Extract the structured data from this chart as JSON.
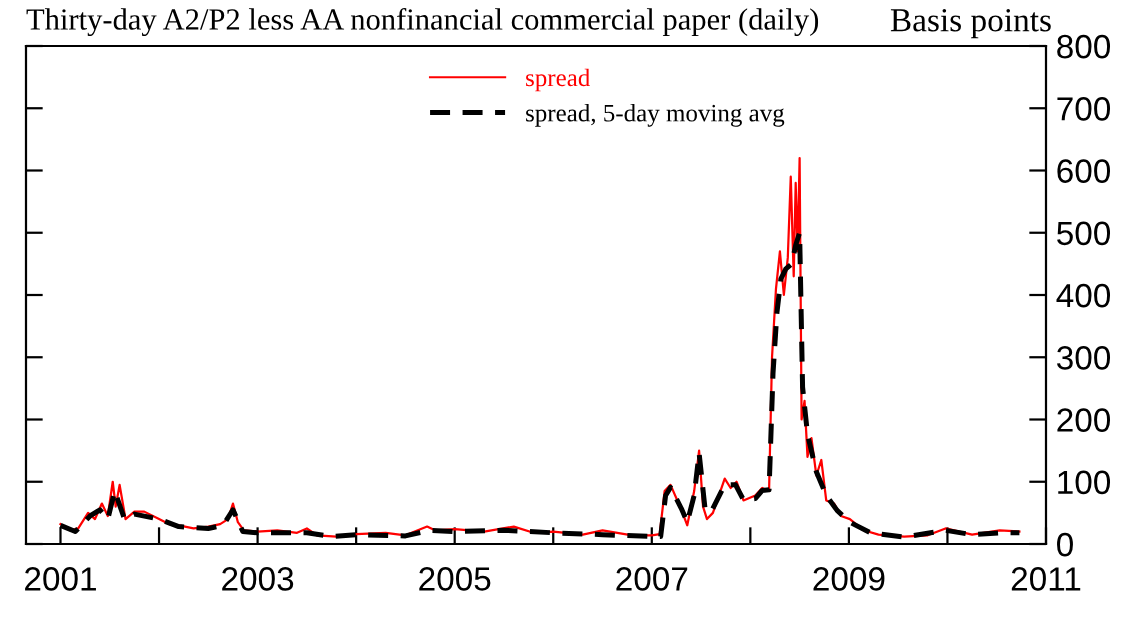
{
  "chart_data": {
    "type": "line",
    "title": "Thirty-day A2/P2 less AA nonfinancial commercial paper (daily)",
    "ylabel": "Basis points",
    "xlim": [
      2000.65,
      2011
    ],
    "xticks": [
      2001,
      {
        "value": 2002,
        "label": null
      },
      2003,
      {
        "value": 2004,
        "label": null
      },
      2005,
      {
        "value": 2006,
        "label": null
      },
      2007,
      {
        "value": 2008,
        "label": null
      },
      2009,
      {
        "value": 2010,
        "label": null
      },
      2011
    ],
    "ylim": [
      0,
      800
    ],
    "yticks": [
      0,
      100,
      200,
      300,
      400,
      500,
      600,
      700,
      800
    ],
    "grid": false,
    "legend": "top",
    "marker": "none",
    "series": [
      {
        "name": "spread",
        "color": "#ff0000",
        "line_style": "solid",
        "x": [
          2001.0,
          2001.1,
          2001.18,
          2001.28,
          2001.35,
          2001.42,
          2001.48,
          2001.53,
          2001.56,
          2001.6,
          2001.66,
          2001.75,
          2001.85,
          2002.0,
          2002.1,
          2002.2,
          2002.35,
          2002.5,
          2002.62,
          2002.7,
          2002.75,
          2002.8,
          2002.86,
          2003.0,
          2003.2,
          2003.4,
          2003.5,
          2003.6,
          2003.8,
          2004.0,
          2004.3,
          2004.5,
          2004.72,
          2004.8,
          2005.0,
          2005.3,
          2005.6,
          2005.8,
          2006.0,
          2006.3,
          2006.5,
          2006.8,
          2007.0,
          2007.08,
          2007.13,
          2007.19,
          2007.3,
          2007.36,
          2007.43,
          2007.48,
          2007.52,
          2007.56,
          2007.62,
          2007.74,
          2007.8,
          2007.86,
          2007.93,
          2008.05,
          2008.12,
          2008.19,
          2008.22,
          2008.26,
          2008.3,
          2008.34,
          2008.38,
          2008.41,
          2008.44,
          2008.46,
          2008.48,
          2008.5,
          2008.52,
          2008.55,
          2008.58,
          2008.62,
          2008.67,
          2008.72,
          2008.77,
          2008.85,
          2008.92,
          2009.01,
          2009.15,
          2009.3,
          2009.56,
          2009.8,
          2009.98,
          2010.25,
          2010.53,
          2010.73
        ],
        "values": [
          32,
          22,
          25,
          50,
          40,
          65,
          45,
          100,
          60,
          95,
          40,
          52,
          52,
          40,
          32,
          30,
          25,
          28,
          32,
          40,
          65,
          35,
          22,
          20,
          22,
          18,
          25,
          14,
          12,
          16,
          18,
          14,
          28,
          22,
          24,
          20,
          28,
          18,
          20,
          15,
          22,
          14,
          14,
          16,
          85,
          95,
          55,
          30,
          85,
          150,
          60,
          40,
          50,
          105,
          90,
          100,
          70,
          78,
          90,
          85,
          300,
          410,
          470,
          400,
          460,
          590,
          430,
          580,
          470,
          620,
          200,
          230,
          140,
          170,
          110,
          135,
          70,
          65,
          45,
          40,
          22,
          15,
          12,
          14,
          25,
          15,
          22,
          20
        ]
      },
      {
        "name": "spread, 5-day moving avg",
        "color": "#000000",
        "line_style": "dashed",
        "x": [
          2001.0,
          2001.15,
          2001.3,
          2001.4,
          2001.48,
          2001.55,
          2001.65,
          2001.75,
          2002.0,
          2002.2,
          2002.5,
          2002.65,
          2002.75,
          2002.85,
          2003.0,
          2003.5,
          2003.75,
          2004.0,
          2004.5,
          2004.75,
          2005.0,
          2005.5,
          2006.0,
          2006.5,
          2007.0,
          2007.09,
          2007.14,
          2007.19,
          2007.3,
          2007.36,
          2007.43,
          2007.48,
          2007.54,
          2007.6,
          2007.74,
          2007.85,
          2007.93,
          2008.05,
          2008.12,
          2008.19,
          2008.23,
          2008.27,
          2008.31,
          2008.36,
          2008.42,
          2008.46,
          2008.5,
          2008.53,
          2008.58,
          2008.67,
          2008.77,
          2008.88,
          2009.01,
          2009.22,
          2009.56,
          2009.98,
          2010.25,
          2010.53,
          2010.73
        ],
        "values": [
          30,
          20,
          45,
          55,
          40,
          85,
          40,
          48,
          40,
          28,
          25,
          30,
          55,
          20,
          18,
          18,
          12,
          15,
          13,
          22,
          20,
          22,
          18,
          15,
          12,
          12,
          78,
          91,
          57,
          35,
          78,
          146,
          57,
          51,
          95,
          95,
          71,
          73,
          86,
          87,
          274,
          372,
          426,
          442,
          450,
          480,
          500,
          252,
          176,
          116,
          78,
          54,
          35,
          18,
          11,
          22,
          15,
          18,
          18
        ]
      }
    ]
  }
}
